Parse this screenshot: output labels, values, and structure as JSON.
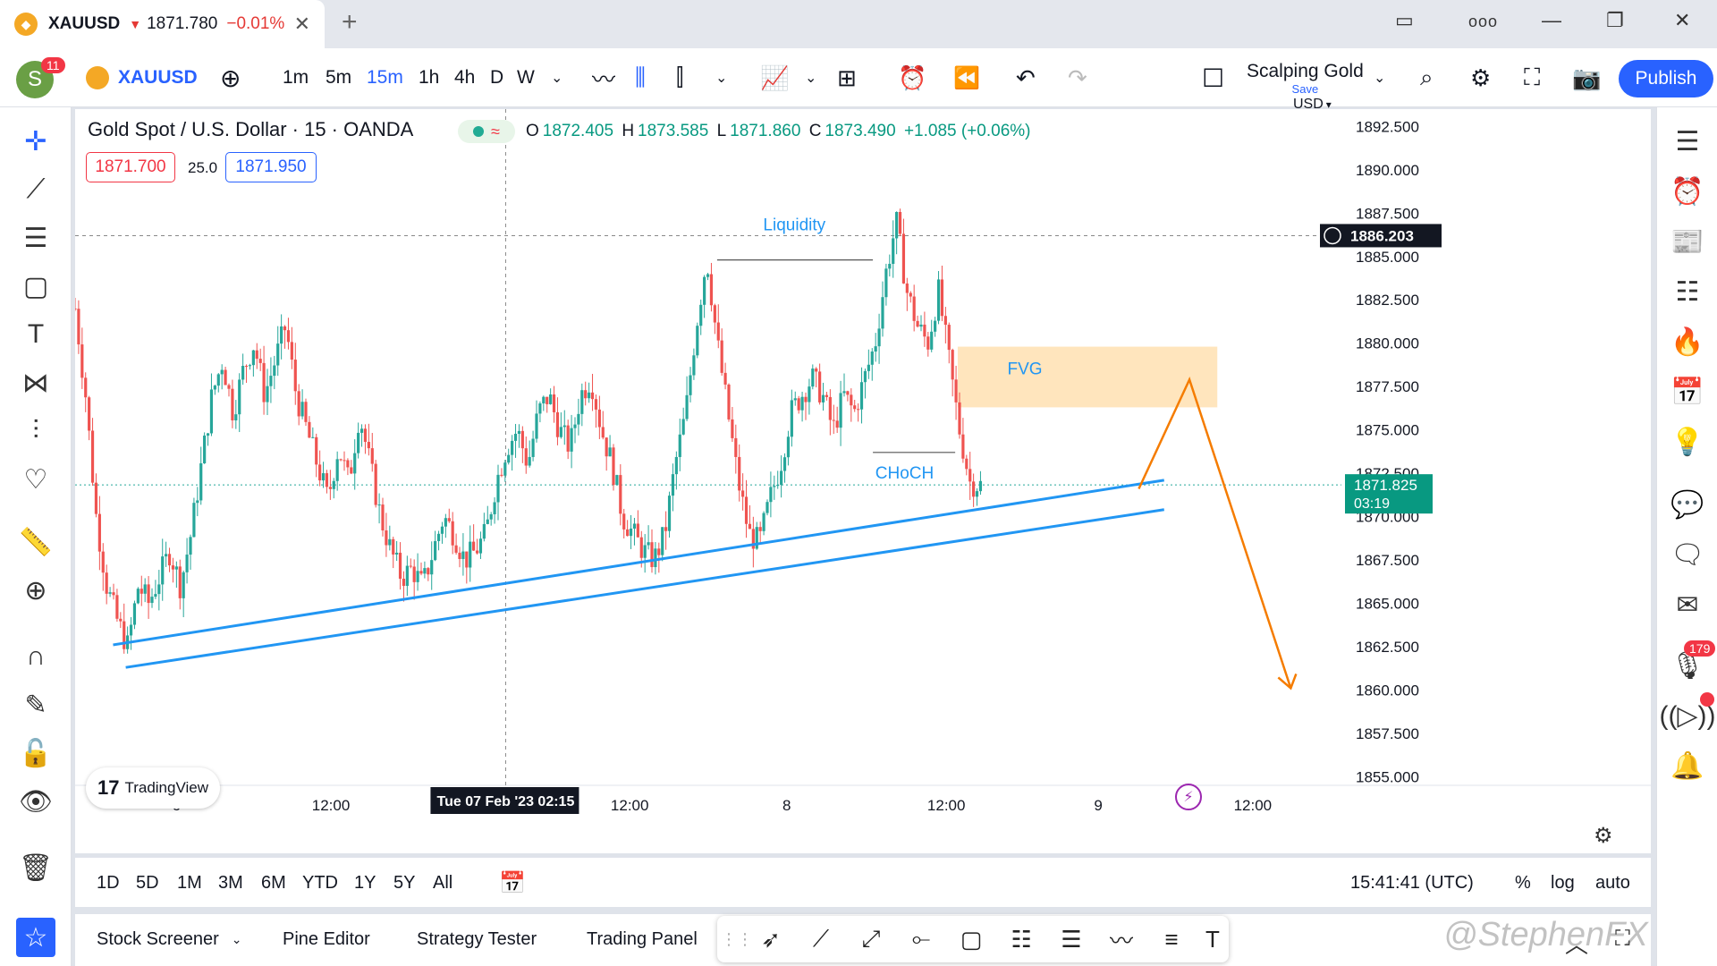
{
  "tab": {
    "symbol": "XAUUSD",
    "price": "1871.780",
    "change": "−0.01%",
    "close_glyph": "✕"
  },
  "window": {
    "new_tab": "+",
    "more": "ooo",
    "minimize": "—",
    "maximize": "❐",
    "close": "✕"
  },
  "toolbar": {
    "avatar_letter": "S",
    "avatar_badge": "11",
    "symbol": "XAUUSD",
    "intervals": [
      "1m",
      "5m",
      "15m",
      "1h",
      "4h",
      "D",
      "W"
    ],
    "active_interval": "15m",
    "layout_name": "Scalping Gold",
    "layout_save": "Save",
    "publish": "Publish"
  },
  "legend": {
    "title": "Gold Spot / U.S. Dollar · 15 · OANDA",
    "open_label": "O",
    "open": "1872.405",
    "high_label": "H",
    "high": "1873.585",
    "low_label": "L",
    "low": "1871.860",
    "close_label": "C",
    "close": "1873.490",
    "change": "+1.085 (+0.06%)",
    "bid": "1871.700",
    "spread": "25.0",
    "ask": "1871.950"
  },
  "chart_data": {
    "type": "candlestick",
    "currency": "USD",
    "y_ticks": [
      "1892.500",
      "1890.000",
      "1887.500",
      "1885.000",
      "1882.500",
      "1880.000",
      "1877.500",
      "1875.000",
      "1872.500",
      "1870.000",
      "1867.500",
      "1865.000",
      "1862.500",
      "1860.000",
      "1857.500",
      "1855.000"
    ],
    "ylim": [
      1854.5,
      1893.5
    ],
    "x_ticks": [
      "6",
      "12:00",
      "12:00",
      "8",
      "12:00",
      "9",
      "12:00"
    ],
    "crosshair_time": "Tue 07 Feb '23   02:15",
    "crosshair_price": "1886.203",
    "last_price": "1871.825",
    "countdown": "03:19",
    "annotations": {
      "liquidity": "Liquidity",
      "fvg": "FVG",
      "choch": "CHoCH"
    },
    "fvg_zone": [
      1876.3,
      1879.8
    ],
    "trendlines": [
      {
        "from": [
          0.03,
          1862.6
        ],
        "to": [
          0.86,
          1872.1
        ]
      },
      {
        "from": [
          0.04,
          1861.3
        ],
        "to": [
          0.86,
          1870.4
        ]
      }
    ],
    "projection": [
      [
        0.84,
        1871.6
      ],
      [
        0.88,
        1877.9
      ],
      [
        0.96,
        1860.1
      ]
    ],
    "candles_close_path": [
      1882,
      1877,
      1870,
      1866,
      1864,
      1862.5,
      1866,
      1865,
      1866.5,
      1868,
      1866,
      1869,
      1873,
      1877,
      1879,
      1876,
      1878.5,
      1880,
      1877,
      1879,
      1881,
      1877,
      1875,
      1873,
      1871,
      1874,
      1872,
      1876,
      1873,
      1870,
      1868,
      1866.5,
      1867,
      1866,
      1868,
      1870,
      1869,
      1867.5,
      1868,
      1869,
      1872,
      1874,
      1875,
      1873,
      1876,
      1877,
      1875,
      1874,
      1877,
      1878,
      1875,
      1873,
      1870,
      1869,
      1868,
      1867.5,
      1869,
      1873,
      1876,
      1881,
      1885,
      1880,
      1876,
      1872,
      1869,
      1868.5,
      1871,
      1873,
      1876,
      1877,
      1878,
      1877,
      1875,
      1877,
      1876,
      1878,
      1880,
      1884,
      1887,
      1883,
      1881,
      1880,
      1883,
      1879,
      1875,
      1872,
      1871.8
    ]
  },
  "bottom": {
    "ranges": [
      "1D",
      "5D",
      "1M",
      "3M",
      "6M",
      "YTD",
      "1Y",
      "5Y",
      "All"
    ],
    "time": "15:41:41 (UTC)",
    "pct": "%",
    "log": "log",
    "auto": "auto"
  },
  "panels": [
    "Stock Screener",
    "Pine Editor",
    "Strategy Tester",
    "Trading Panel"
  ],
  "watermark": "@StephenFX",
  "tradingview": "TradingView",
  "right_badge": "179",
  "colors": {
    "up": "#26a69a",
    "down": "#ef5350",
    "accent": "#2962ff",
    "trend": "#2196f3",
    "projection": "#f57c00",
    "fvg": "#ffe0b2"
  }
}
